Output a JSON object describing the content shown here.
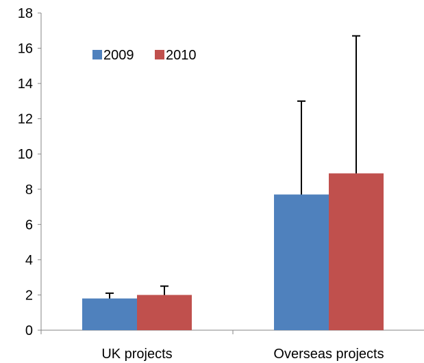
{
  "chart_data": {
    "type": "bar",
    "title": "",
    "xlabel": "",
    "ylabel": "",
    "categories": [
      "UK projects",
      "Overseas projects"
    ],
    "ylim": [
      0,
      18
    ],
    "yticks": [
      0,
      2,
      4,
      6,
      8,
      10,
      12,
      14,
      16,
      18
    ],
    "grid": false,
    "legend": "top-left",
    "error_bars": "upper only",
    "series": [
      {
        "name": "2009",
        "color": "#4f81bd",
        "values": [
          1.8,
          7.7
        ],
        "errors": [
          0.3,
          5.3
        ]
      },
      {
        "name": "2010",
        "color": "#c0504d",
        "values": [
          2.0,
          8.9
        ],
        "errors": [
          0.5,
          7.8
        ]
      }
    ]
  }
}
